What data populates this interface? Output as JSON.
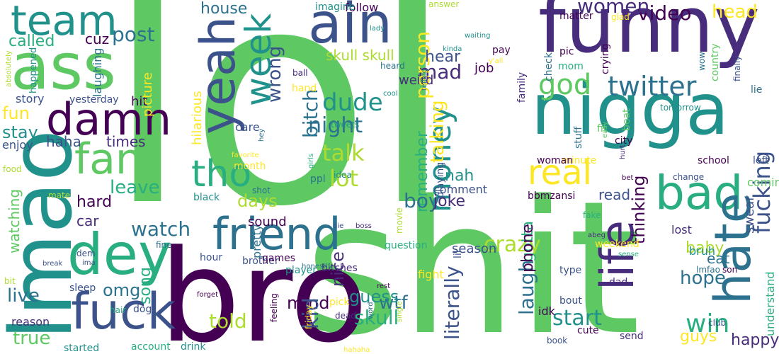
{
  "colors": {
    "background": "#ffffff",
    "palette": [
      "#440154",
      "#472d7b",
      "#3b528b",
      "#2c728e",
      "#21918c",
      "#28ae80",
      "#5ec962",
      "#addc30",
      "#fde725"
    ]
  },
  "words": [
    {
      "text": "lol",
      "color": "#5ec962"
    },
    {
      "text": "shit",
      "color": "#5ec962"
    },
    {
      "text": "bro",
      "color": "#440154"
    },
    {
      "text": "lmao",
      "color": "#21918c"
    },
    {
      "text": "funny",
      "color": "#472d7b"
    },
    {
      "text": "nigga",
      "color": "#21918c"
    },
    {
      "text": "ass",
      "color": "#5ec962"
    },
    {
      "text": "ain",
      "color": "#3b528b"
    },
    {
      "text": "yeah",
      "color": "#3b528b"
    },
    {
      "text": "team",
      "color": "#21918c"
    },
    {
      "text": "dey",
      "color": "#28ae80"
    },
    {
      "text": "fuck",
      "color": "#3b528b"
    },
    {
      "text": "friend",
      "color": "#2c728e"
    },
    {
      "text": "bad",
      "color": "#28ae80"
    },
    {
      "text": "hate",
      "color": "#2c728e"
    },
    {
      "text": "life",
      "color": "#472d7b"
    },
    {
      "text": "damn",
      "color": "#440154"
    },
    {
      "text": "fan",
      "color": "#5ec962"
    },
    {
      "text": "tho",
      "color": "#28ae80"
    },
    {
      "text": "week",
      "color": "#21918c"
    },
    {
      "text": "money",
      "color": "#21918c"
    },
    {
      "text": "real",
      "color": "#fde725"
    },
    {
      "text": "twitter",
      "color": "#2c728e"
    },
    {
      "text": "video",
      "color": "#440154"
    },
    {
      "text": "women",
      "color": "#472d7b"
    },
    {
      "text": "head",
      "color": "#fde725"
    },
    {
      "text": "god",
      "color": "#5ec962"
    },
    {
      "text": "fucking",
      "color": "#3b528b"
    },
    {
      "text": "post",
      "color": "#2c728e"
    },
    {
      "text": "called",
      "color": "#28ae80"
    },
    {
      "text": "cuz",
      "color": "#440154"
    },
    {
      "text": "mad",
      "color": "#472d7b"
    },
    {
      "text": "person",
      "color": "#fde725"
    },
    {
      "text": "wrong",
      "color": "#3b528b"
    },
    {
      "text": "bitch",
      "color": "#2c728e"
    },
    {
      "text": "house",
      "color": "#2c728e"
    },
    {
      "text": "hear",
      "color": "#3b528b"
    },
    {
      "text": "job",
      "color": "#440154"
    },
    {
      "text": "dude",
      "color": "#21918c"
    },
    {
      "text": "night",
      "color": "#2c728e"
    },
    {
      "text": "talk",
      "color": "#addc30"
    },
    {
      "text": "lot",
      "color": "#addc30"
    },
    {
      "text": "talking",
      "color": "#fde725"
    },
    {
      "text": "remember",
      "color": "#28ae80"
    },
    {
      "text": "nah",
      "color": "#21918c"
    },
    {
      "text": "skull skull",
      "color": "#addc30"
    },
    {
      "text": "weird",
      "color": "#472d7b"
    },
    {
      "text": "fun",
      "color": "#fde725"
    },
    {
      "text": "stay",
      "color": "#21918c"
    },
    {
      "text": "enjoy",
      "color": "#3b528b"
    },
    {
      "text": "haha",
      "color": "#3b528b"
    },
    {
      "text": "times",
      "color": "#472d7b"
    },
    {
      "text": "story",
      "color": "#3b528b"
    },
    {
      "text": "happened",
      "color": "#21918c"
    },
    {
      "text": "laughing",
      "color": "#2c728e"
    },
    {
      "text": "yesterday",
      "color": "#3b528b"
    },
    {
      "text": "hit",
      "color": "#440154"
    },
    {
      "text": "picture",
      "color": "#fde725"
    },
    {
      "text": "hilarious",
      "color": "#fde725"
    },
    {
      "text": "care",
      "color": "#3b528b"
    },
    {
      "text": "month",
      "color": "#fde725"
    },
    {
      "text": "leave",
      "color": "#28ae80"
    },
    {
      "text": "hard",
      "color": "#440154"
    },
    {
      "text": "days",
      "color": "#addc30"
    },
    {
      "text": "watch",
      "color": "#2c728e"
    },
    {
      "text": "car",
      "color": "#472d7b"
    },
    {
      "text": "watching",
      "color": "#5ec962"
    },
    {
      "text": "live",
      "color": "#2c728e"
    },
    {
      "text": "omg",
      "color": "#2c728e"
    },
    {
      "text": "true",
      "color": "#5ec962"
    },
    {
      "text": "reason",
      "color": "#472d7b"
    },
    {
      "text": "sleep",
      "color": "#3b528b"
    },
    {
      "text": "dog",
      "color": "#3b528b"
    },
    {
      "text": "song",
      "color": "#28ae80"
    },
    {
      "text": "told",
      "color": "#addc30"
    },
    {
      "text": "mind",
      "color": "#440154"
    },
    {
      "text": "skull",
      "color": "#28ae80"
    },
    {
      "text": "literally",
      "color": "#3b528b"
    },
    {
      "text": "kid",
      "color": "#3b528b"
    },
    {
      "text": "nice",
      "color": "#472d7b"
    },
    {
      "text": "wtf",
      "color": "#2c728e"
    },
    {
      "text": "guess",
      "color": "#21918c"
    },
    {
      "text": "boy",
      "color": "#2c728e"
    },
    {
      "text": "joke",
      "color": "#472d7b"
    },
    {
      "text": "comment",
      "color": "#3b528b"
    },
    {
      "text": "crazy",
      "color": "#addc30"
    },
    {
      "text": "laugh",
      "color": "#2c728e"
    },
    {
      "text": "gotta",
      "color": "#28ae80"
    },
    {
      "text": "phone",
      "color": "#440154"
    },
    {
      "text": "start",
      "color": "#21918c"
    },
    {
      "text": "hope",
      "color": "#2c728e"
    },
    {
      "text": "baby",
      "color": "#addc30"
    },
    {
      "text": "thinking",
      "color": "#440154"
    },
    {
      "text": "read",
      "color": "#3b528b"
    },
    {
      "text": "win",
      "color": "#28ae80"
    },
    {
      "text": "guys",
      "color": "#fde725"
    },
    {
      "text": "eat",
      "color": "#2c728e"
    },
    {
      "text": "swear",
      "color": "#3b528b"
    },
    {
      "text": "happy",
      "color": "#472d7b"
    },
    {
      "text": "coming",
      "color": "#5ec962"
    },
    {
      "text": "understand",
      "color": "#28ae80"
    },
    {
      "text": "sound",
      "color": "#440154"
    },
    {
      "text": "black",
      "color": "#21918c"
    },
    {
      "text": "playing",
      "color": "#3b528b"
    },
    {
      "text": "pretty",
      "color": "#2c728e"
    },
    {
      "text": "season",
      "color": "#3b528b"
    },
    {
      "text": "lil",
      "color": "#3b528b"
    },
    {
      "text": "weekend",
      "color": "#fde725"
    },
    {
      "text": "idk",
      "color": "#440154"
    },
    {
      "text": "brother",
      "color": "#3b528b"
    },
    {
      "text": "question",
      "color": "#28ae80"
    },
    {
      "text": "games",
      "color": "#440154"
    },
    {
      "text": "bitches",
      "color": "#472d7b"
    },
    {
      "text": "fight",
      "color": "#fde725"
    },
    {
      "text": "player",
      "color": "#21918c"
    },
    {
      "text": "lost",
      "color": "#472d7b"
    },
    {
      "text": "bbmzansi",
      "color": "#440154"
    },
    {
      "text": "hour",
      "color": "#3b528b"
    },
    {
      "text": "bruh",
      "color": "#21918c"
    },
    {
      "text": "lmfao",
      "color": "#2c728e"
    },
    {
      "text": "school",
      "color": "#440154"
    },
    {
      "text": "change",
      "color": "#3b528b"
    },
    {
      "text": "city",
      "color": "#440154"
    },
    {
      "text": "left",
      "color": "#3b528b"
    },
    {
      "text": "lie",
      "color": "#2c728e"
    },
    {
      "text": "finally",
      "color": "#3b528b"
    },
    {
      "text": "stuff",
      "color": "#2c728e"
    },
    {
      "text": "minute",
      "color": "#fde725"
    },
    {
      "text": "woman",
      "color": "#440154"
    },
    {
      "text": "mom",
      "color": "#28ae80"
    },
    {
      "text": "crying",
      "color": "#440154"
    },
    {
      "text": "pic",
      "color": "#440154"
    },
    {
      "text": "check",
      "color": "#2c728e"
    },
    {
      "text": "pay",
      "color": "#440154"
    },
    {
      "text": "matter",
      "color": "#440154"
    },
    {
      "text": "glad",
      "color": "#fde725"
    },
    {
      "text": "country",
      "color": "#5ec962"
    },
    {
      "text": "wow",
      "color": "#2c728e"
    },
    {
      "text": "family",
      "color": "#472d7b"
    },
    {
      "text": "tomorrow",
      "color": "#21918c"
    },
    {
      "text": "fit",
      "color": "#5ec962"
    },
    {
      "text": "beat",
      "color": "#5ec962"
    },
    {
      "text": "easy",
      "color": "#5ec962"
    },
    {
      "text": "hurt",
      "color": "#472d7b"
    },
    {
      "text": "bet",
      "color": "#440154"
    },
    {
      "text": "fake",
      "color": "#28ae80"
    },
    {
      "text": "abeg",
      "color": "#472d7b"
    },
    {
      "text": "sense",
      "color": "#28ae80"
    },
    {
      "text": "type",
      "color": "#3b528b"
    },
    {
      "text": "dad",
      "color": "#472d7b"
    },
    {
      "text": "bout",
      "color": "#3b528b"
    },
    {
      "text": "cute",
      "color": "#440154"
    },
    {
      "text": "book",
      "color": "#3b528b"
    },
    {
      "text": "send",
      "color": "#472d7b"
    },
    {
      "text": "club",
      "color": "#3b528b"
    },
    {
      "text": "son",
      "color": "#440154"
    },
    {
      "text": "follow",
      "color": "#440154"
    },
    {
      "text": "imagine",
      "color": "#21918c"
    },
    {
      "text": "answer",
      "color": "#addc30"
    },
    {
      "text": "waiting",
      "color": "#21918c"
    },
    {
      "text": "kinda",
      "color": "#21918c"
    },
    {
      "text": "lady",
      "color": "#21918c"
    },
    {
      "text": "y'all",
      "color": "#fde725"
    },
    {
      "text": "hand",
      "color": "#fde725"
    },
    {
      "text": "heard",
      "color": "#2c728e"
    },
    {
      "text": "ball",
      "color": "#472d7b"
    },
    {
      "text": "cool",
      "color": "#21918c"
    },
    {
      "text": "telling",
      "color": "#2c728e"
    },
    {
      "text": "tweets",
      "color": "#21918c"
    },
    {
      "text": "favorite",
      "color": "#fde725"
    },
    {
      "text": "hey",
      "color": "#2c728e"
    },
    {
      "text": "girls",
      "color": "#28ae80"
    },
    {
      "text": "ppl",
      "color": "#2c728e"
    },
    {
      "text": "idea",
      "color": "#21918c"
    },
    {
      "text": "shot",
      "color": "#2c728e"
    },
    {
      "text": "mate",
      "color": "#addc30"
    },
    {
      "text": "food",
      "color": "#addc30"
    },
    {
      "text": "absolutely",
      "color": "#addc30"
    },
    {
      "text": "dem",
      "color": "#3b528b"
    },
    {
      "text": "ima",
      "color": "#3b528b"
    },
    {
      "text": "fine",
      "color": "#2c728e"
    },
    {
      "text": "bit",
      "color": "#addc30"
    },
    {
      "text": "break",
      "color": "#3b528b"
    },
    {
      "text": "hair",
      "color": "#28ae80"
    },
    {
      "text": "forget",
      "color": "#440154"
    },
    {
      "text": "started",
      "color": "#21918c"
    },
    {
      "text": "account",
      "color": "#28ae80"
    },
    {
      "text": "drink",
      "color": "#21918c"
    },
    {
      "text": "feeling",
      "color": "#440154"
    },
    {
      "text": "friday",
      "color": "#fde725"
    },
    {
      "text": "pick",
      "color": "#fde725"
    },
    {
      "text": "dead",
      "color": "#472d7b"
    },
    {
      "text": "word",
      "color": "#2c728e"
    },
    {
      "text": "single",
      "color": "#addc30"
    },
    {
      "text": "honestly",
      "color": "#2c728e"
    },
    {
      "text": "die",
      "color": "#3b528b"
    },
    {
      "text": "boss",
      "color": "#472d7b"
    },
    {
      "text": "movie",
      "color": "#addc30"
    },
    {
      "text": "rest",
      "color": "#440154"
    },
    {
      "text": "hahaha",
      "color": "#fde725"
    }
  ]
}
